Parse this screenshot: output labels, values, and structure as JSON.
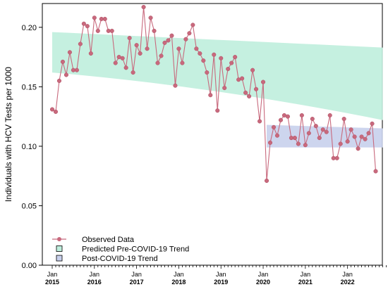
{
  "chart_data": {
    "type": "line",
    "title": "",
    "ylabel": "Individuals with HCV Tests per 1000",
    "xlabel": "",
    "ylim": [
      0,
      0.22
    ],
    "yticks": [
      0.0,
      0.05,
      0.1,
      0.15,
      0.2
    ],
    "ytick_labels": [
      "0.00",
      "0.05",
      "0.10",
      "0.15",
      "0.20"
    ],
    "xticks": [
      {
        "month": "Jan",
        "year": "2015",
        "index": 0
      },
      {
        "month": "Jan",
        "year": "2016",
        "index": 12
      },
      {
        "month": "Jan",
        "year": "2017",
        "index": 24
      },
      {
        "month": "Jan",
        "year": "2018",
        "index": 36
      },
      {
        "month": "Jan",
        "year": "2019",
        "index": 48
      },
      {
        "month": "Jan",
        "year": "2020",
        "index": 60
      },
      {
        "month": "Jan",
        "year": "2021",
        "index": 72
      },
      {
        "month": "Jan",
        "year": "2022",
        "index": 84
      }
    ],
    "x_start": "2015-01",
    "x_end": "2022-12",
    "series": [
      {
        "name": "Observed Data",
        "color": "#c8697d",
        "values": [
          0.131,
          0.129,
          0.155,
          0.171,
          0.16,
          0.179,
          0.164,
          0.164,
          0.186,
          0.203,
          0.201,
          0.178,
          0.208,
          0.197,
          0.207,
          0.207,
          0.197,
          0.197,
          0.17,
          0.175,
          0.174,
          0.166,
          0.191,
          0.162,
          0.185,
          0.178,
          0.217,
          0.182,
          0.208,
          0.197,
          0.17,
          0.176,
          0.187,
          0.189,
          0.193,
          0.151,
          0.182,
          0.17,
          0.19,
          0.195,
          0.202,
          0.182,
          0.178,
          0.172,
          0.162,
          0.143,
          0.177,
          0.13,
          0.174,
          0.149,
          0.165,
          0.17,
          0.175,
          0.156,
          0.157,
          0.145,
          0.142,
          0.164,
          0.148,
          0.121,
          0.154,
          0.071,
          0.103,
          0.116,
          0.109,
          0.122,
          0.126,
          0.125,
          0.107,
          0.107,
          0.102,
          0.126,
          0.101,
          0.111,
          0.123,
          0.117,
          0.107,
          0.114,
          0.112,
          0.126,
          0.09,
          0.09,
          0.102,
          0.123,
          0.104,
          0.114,
          0.108,
          0.098,
          0.108,
          0.106,
          0.111,
          0.119,
          0.079
        ]
      }
    ],
    "bands": [
      {
        "name": "Predicted Pre-COVID-19 Trend",
        "color": "#bfeedd",
        "x_index": [
          0,
          94
        ],
        "upper": [
          0.196,
          0.183
        ],
        "lower": [
          0.162,
          0.122
        ],
        "shape": "fan"
      },
      {
        "name": "Post-COVID-19 Trend",
        "color": "#c8d0ec",
        "x_index": [
          61,
          94
        ],
        "upper": [
          0.118,
          0.115
        ],
        "lower": [
          0.099,
          0.099
        ],
        "shape": "flat"
      }
    ],
    "legend": {
      "placement": "bottom-left",
      "entries": [
        "Observed Data",
        "Predicted Pre-COVID-19 Trend",
        "Post-COVID-19 Trend"
      ]
    }
  }
}
